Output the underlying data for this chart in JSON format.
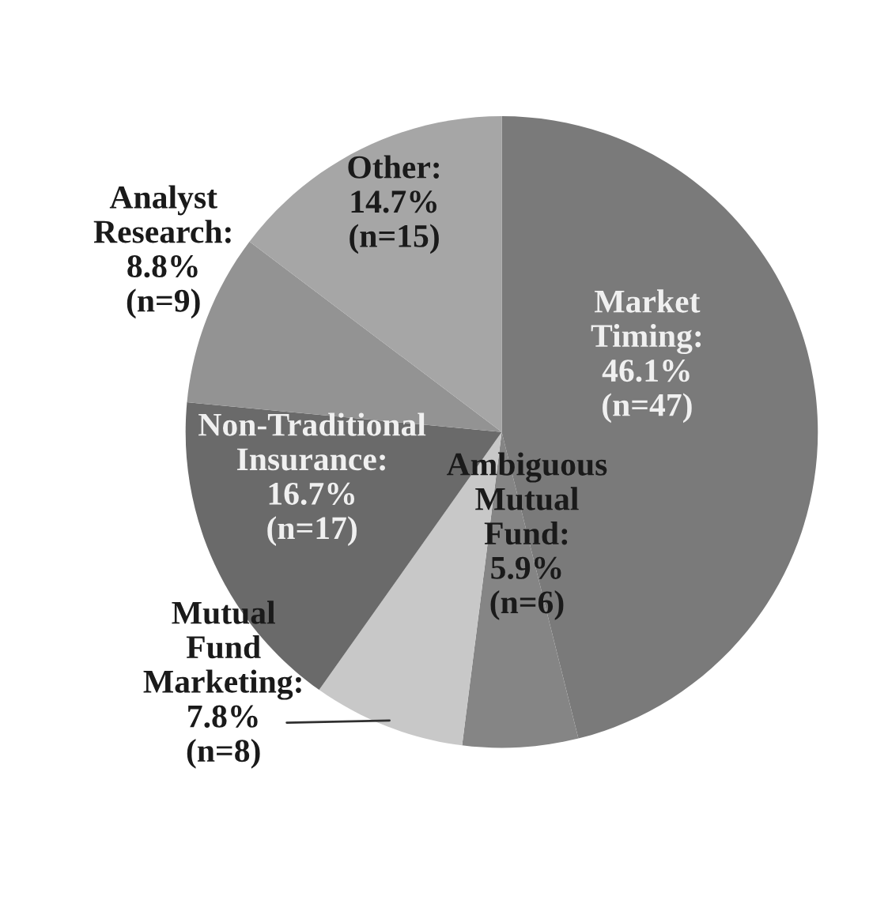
{
  "chart_data": {
    "type": "pie",
    "categories": [
      "Market Timing",
      "Ambiguous Mutual Fund",
      "Mutual Fund Marketing",
      "Non-Traditional Insurance",
      "Analyst Research",
      "Other"
    ],
    "values": [
      46.1,
      5.9,
      7.8,
      16.7,
      8.8,
      14.7
    ],
    "value_labels": [
      ": 46.1% (n=47)",
      ": 5.9% (n=6)",
      ": 7.8% (n=8)",
      ": 16.7% (n=17)",
      ": 8.8% (n=9)",
      ": 14.7% (n=15)"
    ],
    "colors": [
      "#7a7a7a",
      "#858585",
      "#c8c8c8",
      "#6a6a6a",
      "#939393",
      "#a6a6a6"
    ]
  }
}
